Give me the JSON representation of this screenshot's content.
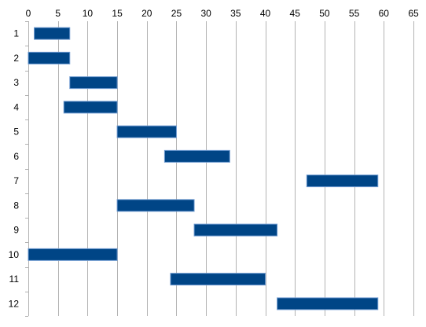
{
  "chart_data": {
    "type": "bar",
    "orientation": "horizontal-floating",
    "title": "",
    "xlabel": "",
    "ylabel": "",
    "xlim": [
      0,
      65
    ],
    "x_ticks": [
      0,
      5,
      10,
      15,
      20,
      25,
      30,
      35,
      40,
      45,
      50,
      55,
      60,
      65
    ],
    "x_axis_position": "top",
    "grid": "vertical",
    "legend": "none",
    "categories": [
      "1",
      "2",
      "3",
      "4",
      "5",
      "6",
      "7",
      "8",
      "9",
      "10",
      "11",
      "12"
    ],
    "bars": [
      {
        "start": 1,
        "end": 7
      },
      {
        "start": 0,
        "end": 7
      },
      {
        "start": 7,
        "end": 15
      },
      {
        "start": 6,
        "end": 15
      },
      {
        "start": 15,
        "end": 25
      },
      {
        "start": 23,
        "end": 34
      },
      {
        "start": 47,
        "end": 59
      },
      {
        "start": 15,
        "end": 28
      },
      {
        "start": 28,
        "end": 42
      },
      {
        "start": 0,
        "end": 15
      },
      {
        "start": 24,
        "end": 40
      },
      {
        "start": 42,
        "end": 59
      }
    ],
    "colors": {
      "bar": "#004586",
      "bar_edge": "#6f9bd1",
      "grid": "#b3b3b3",
      "axis": "#b3b3b3"
    }
  }
}
